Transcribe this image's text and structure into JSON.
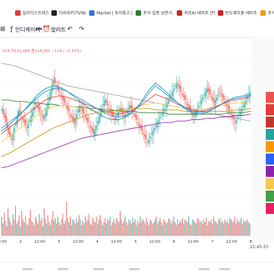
{
  "bookmarks": [
    {
      "label": "알리익스프레스 - A...",
      "color": "#e53935"
    },
    {
      "label": "티비위키(TVWiki) - ...",
      "color": "#222222"
    },
    {
      "label": "Market | 투자참고 |...",
      "color": "#3b6fd8"
    },
    {
      "label": "주식 일봉 상한가...",
      "color": "#2e7d32"
    },
    {
      "label": "피로AI 테마주 관련...",
      "color": "#c62828"
    },
    {
      "label": "반도체부품 테마주...",
      "color": "#c62828"
    },
    {
      "label": "주식",
      "color": "#f39c12"
    }
  ],
  "toolbar": {
    "indicator_label": "인디케이터",
    "alert_label": "얼러트",
    "replay_label": "리플레이"
  },
  "ohlc_readout": ".314  저111,085  종114,281  −119 (−0.31%)",
  "time_readout": "21:45:57",
  "chart_data": {
    "type": "candlestick",
    "x_tick_labels": [
      "12:00",
      "2",
      "12:00",
      "3",
      "12:00",
      "4",
      "12:00",
      "5",
      "12:00",
      "6",
      "12:00",
      "7",
      "12:00",
      "8"
    ],
    "candle_closes": [
      64,
      60,
      57,
      54,
      50,
      46,
      44,
      42,
      46,
      50,
      54,
      58,
      62,
      60,
      58,
      56,
      54,
      52,
      50,
      53,
      56,
      59,
      62,
      65,
      68,
      66,
      64,
      62,
      60,
      58,
      56,
      60,
      64,
      68,
      72,
      76,
      80,
      84,
      82,
      80,
      78,
      76,
      74,
      72,
      70,
      68,
      66,
      64,
      62,
      60,
      58,
      56,
      54,
      57,
      60,
      63,
      66,
      64,
      62,
      60,
      58,
      56,
      54,
      52,
      50,
      48,
      46,
      49,
      52,
      55,
      58,
      61,
      64,
      67,
      70,
      68,
      66,
      64,
      62,
      60,
      58,
      56,
      58,
      60,
      62,
      64,
      62,
      60,
      58,
      60,
      62,
      64,
      66,
      64,
      62,
      60,
      58,
      56,
      54,
      52,
      50,
      48,
      46,
      44,
      42,
      40,
      42,
      44,
      46,
      48,
      50,
      52,
      54,
      56,
      58,
      60,
      62,
      64,
      66,
      68,
      70,
      72,
      74,
      76,
      78,
      80,
      82,
      80,
      78,
      76,
      74,
      72,
      70,
      68,
      66,
      64,
      62,
      60,
      58,
      60,
      62,
      64,
      66,
      68,
      70,
      72,
      74,
      76,
      78,
      76,
      74,
      72,
      70,
      68,
      70,
      72,
      74,
      76,
      74,
      72,
      70,
      68,
      66,
      64,
      62,
      60,
      58,
      56,
      54,
      56,
      58,
      60,
      62,
      64,
      66,
      68,
      70,
      72,
      74,
      76
    ],
    "volumes": [
      14,
      9,
      17,
      11,
      7,
      20,
      13,
      10,
      8,
      16,
      12,
      22,
      9,
      11,
      15,
      7,
      18,
      12,
      10,
      14,
      9,
      8,
      13,
      19,
      11,
      10,
      8,
      14,
      12,
      9,
      16,
      11,
      13,
      7,
      20,
      12,
      9,
      15,
      10,
      8,
      12,
      18,
      11,
      13,
      9,
      14,
      10,
      8,
      12,
      16,
      9,
      11,
      25,
      13,
      10,
      14,
      8,
      12,
      11,
      9,
      13,
      10,
      15,
      12,
      8,
      11,
      9,
      14,
      10,
      12,
      16,
      9,
      8,
      13,
      11,
      10,
      14,
      9,
      12,
      15,
      11,
      8,
      10,
      13,
      9,
      12,
      11,
      14,
      8,
      10,
      12,
      9,
      13,
      11,
      10,
      18,
      12,
      9,
      11,
      14,
      10,
      8,
      12,
      11,
      9,
      13,
      10,
      12,
      8,
      11,
      9,
      14,
      10,
      12,
      11,
      9,
      13,
      10,
      8,
      12,
      11,
      9,
      10,
      12,
      14,
      9,
      11,
      13,
      10,
      8,
      12,
      11,
      9,
      10,
      13,
      12,
      9,
      11,
      14,
      10,
      8,
      12,
      9,
      11,
      10,
      13,
      9,
      12,
      11,
      10,
      14,
      9,
      8,
      12,
      11,
      10,
      9,
      13,
      12,
      10,
      11,
      9,
      12,
      10,
      13,
      8,
      11,
      10,
      12,
      9,
      14,
      11,
      10,
      9,
      12,
      13,
      10,
      11,
      9,
      12,
      10,
      11,
      9,
      13,
      12,
      10,
      11,
      14,
      9,
      12,
      10,
      11,
      13,
      9,
      12,
      10,
      11,
      12,
      10,
      9
    ],
    "moving_averages": [
      {
        "color": "#9e9e9e",
        "values": [
          96,
          95,
          94,
          92,
          90,
          88,
          86,
          84,
          82,
          80,
          79,
          78,
          77,
          76,
          75,
          74,
          73,
          72,
          71,
          70,
          69,
          68,
          67,
          66,
          65,
          64,
          63,
          62,
          61,
          60,
          59,
          58,
          57,
          56,
          55
        ]
      },
      {
        "color": "#2e7d32",
        "values": [
          70,
          70,
          69,
          69,
          68,
          68,
          67,
          67,
          66,
          66,
          65,
          65,
          64,
          64,
          63,
          63,
          62,
          62,
          62,
          61,
          61,
          61,
          61,
          60,
          60,
          60,
          60,
          60,
          60,
          60,
          60,
          61,
          61,
          61,
          62
        ]
      },
      {
        "color": "#8e24aa",
        "values": [
          22,
          23,
          25,
          27,
          29,
          31,
          33,
          35,
          37,
          39,
          41,
          43,
          44,
          45,
          46,
          47,
          48,
          49,
          50,
          51,
          52,
          53,
          54,
          54,
          55,
          55,
          56,
          56,
          57,
          57,
          58,
          58,
          59,
          59,
          60
        ]
      },
      {
        "color": "#c88a00",
        "values": [
          30,
          32,
          35,
          38,
          41,
          44,
          47,
          50,
          52,
          54,
          56,
          58,
          60,
          61,
          62,
          62,
          63,
          63,
          64,
          64,
          64,
          63,
          63,
          63,
          63,
          62,
          62,
          62,
          62,
          62,
          62,
          62,
          63,
          63,
          64
        ]
      },
      {
        "color": "#f2c94c",
        "values": [
          40,
          44,
          48,
          52,
          56,
          60,
          63,
          65,
          66,
          66,
          65,
          64,
          63,
          62,
          61,
          61,
          62,
          63,
          64,
          66,
          67,
          68,
          67,
          66,
          65,
          64,
          63,
          63,
          64,
          65,
          66,
          67,
          68,
          68,
          69
        ]
      },
      {
        "color": "#e53935",
        "values": [
          46,
          50,
          54,
          58,
          62,
          66,
          70,
          72,
          73,
          72,
          70,
          68,
          66,
          64,
          62,
          61,
          60,
          61,
          63,
          66,
          70,
          74,
          72,
          70,
          67,
          65,
          63,
          62,
          63,
          65,
          67,
          69,
          70,
          71,
          72
        ]
      },
      {
        "color": "#1e88e5",
        "values": [
          50,
          54,
          58,
          62,
          67,
          72,
          76,
          78,
          78,
          76,
          73,
          70,
          67,
          64,
          61,
          59,
          58,
          59,
          62,
          67,
          74,
          80,
          76,
          72,
          68,
          65,
          62,
          61,
          62,
          64,
          67,
          70,
          71,
          72,
          73
        ]
      },
      {
        "color": "#0097a7",
        "values": [
          48,
          52,
          57,
          62,
          68,
          74,
          78,
          80,
          79,
          76,
          72,
          68,
          64,
          61,
          58,
          56,
          56,
          58,
          62,
          68,
          76,
          82,
          78,
          73,
          68,
          64,
          61,
          60,
          61,
          64,
          67,
          70,
          72,
          73,
          74
        ]
      }
    ],
    "right_markers": [
      "#ef5350",
      "#e53935",
      "#c0392b",
      "#26a69a",
      "#ff9800",
      "#2962ff",
      "#8e24aa",
      "#f2c94c",
      "#43a047",
      "#e91e63"
    ]
  }
}
